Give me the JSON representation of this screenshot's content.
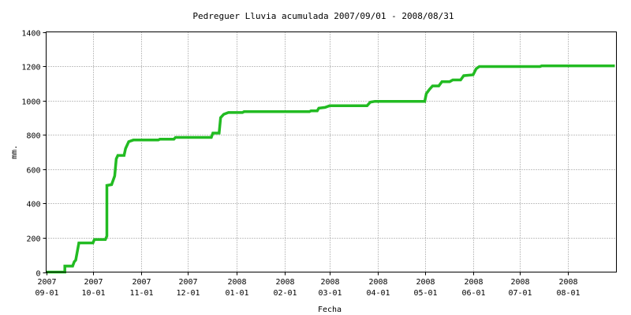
{
  "chart_data": {
    "type": "line",
    "title": "Pedreguer Lluvia acumulada 2007/09/01 - 2008/08/31",
    "xlabel": "Fecha",
    "ylabel": "mm.",
    "ylim": [
      0,
      1400
    ],
    "yticks": [
      0,
      200,
      400,
      600,
      800,
      1000,
      1200,
      1400
    ],
    "xlim": [
      "2007-09-01",
      "2008-08-31"
    ],
    "xticks": [
      {
        "date": "2007-09-01",
        "year": "2007",
        "md": "09-01"
      },
      {
        "date": "2007-10-01",
        "year": "2007",
        "md": "10-01"
      },
      {
        "date": "2007-11-01",
        "year": "2007",
        "md": "11-01"
      },
      {
        "date": "2007-12-01",
        "year": "2007",
        "md": "12-01"
      },
      {
        "date": "2008-01-01",
        "year": "2008",
        "md": "01-01"
      },
      {
        "date": "2008-02-01",
        "year": "2008",
        "md": "02-01"
      },
      {
        "date": "2008-03-01",
        "year": "2008",
        "md": "03-01"
      },
      {
        "date": "2008-04-01",
        "year": "2008",
        "md": "04-01"
      },
      {
        "date": "2008-05-01",
        "year": "2008",
        "md": "05-01"
      },
      {
        "date": "2008-06-01",
        "year": "2008",
        "md": "06-01"
      },
      {
        "date": "2008-07-01",
        "year": "2008",
        "md": "07-01"
      },
      {
        "date": "2008-08-01",
        "year": "2008",
        "md": "08-01"
      }
    ],
    "grid": true,
    "series": [
      {
        "color": "#22bb22",
        "points": [
          [
            "2007-09-01",
            0
          ],
          [
            "2007-09-13",
            0
          ],
          [
            "2007-09-13",
            35
          ],
          [
            "2007-09-18",
            35
          ],
          [
            "2007-09-19",
            60
          ],
          [
            "2007-09-20",
            70
          ],
          [
            "2007-09-21",
            120
          ],
          [
            "2007-09-22",
            170
          ],
          [
            "2007-10-01",
            170
          ],
          [
            "2007-10-02",
            190
          ],
          [
            "2007-10-09",
            190
          ],
          [
            "2007-10-10",
            210
          ],
          [
            "2007-10-10",
            505
          ],
          [
            "2007-10-13",
            510
          ],
          [
            "2007-10-15",
            560
          ],
          [
            "2007-10-16",
            660
          ],
          [
            "2007-10-17",
            680
          ],
          [
            "2007-10-21",
            680
          ],
          [
            "2007-10-22",
            720
          ],
          [
            "2007-10-24",
            760
          ],
          [
            "2007-10-27",
            770
          ],
          [
            "2007-11-12",
            770
          ],
          [
            "2007-11-13",
            775
          ],
          [
            "2007-11-22",
            775
          ],
          [
            "2007-11-23",
            785
          ],
          [
            "2007-12-16",
            785
          ],
          [
            "2007-12-17",
            810
          ],
          [
            "2007-12-21",
            810
          ],
          [
            "2007-12-22",
            900
          ],
          [
            "2007-12-24",
            920
          ],
          [
            "2007-12-27",
            930
          ],
          [
            "2008-01-05",
            930
          ],
          [
            "2008-01-06",
            935
          ],
          [
            "2008-02-17",
            935
          ],
          [
            "2008-02-18",
            940
          ],
          [
            "2008-02-22",
            940
          ],
          [
            "2008-02-23",
            955
          ],
          [
            "2008-02-27",
            960
          ],
          [
            "2008-03-01",
            970
          ],
          [
            "2008-03-25",
            970
          ],
          [
            "2008-03-27",
            990
          ],
          [
            "2008-03-30",
            995
          ],
          [
            "2008-05-01",
            995
          ],
          [
            "2008-05-02",
            1040
          ],
          [
            "2008-05-04",
            1065
          ],
          [
            "2008-05-06",
            1085
          ],
          [
            "2008-05-10",
            1085
          ],
          [
            "2008-05-12",
            1110
          ],
          [
            "2008-05-17",
            1110
          ],
          [
            "2008-05-19",
            1120
          ],
          [
            "2008-05-24",
            1120
          ],
          [
            "2008-05-26",
            1145
          ],
          [
            "2008-06-01",
            1150
          ],
          [
            "2008-06-03",
            1185
          ],
          [
            "2008-06-05",
            1198
          ],
          [
            "2008-07-14",
            1198
          ],
          [
            "2008-07-15",
            1202
          ],
          [
            "2008-08-31",
            1202
          ]
        ]
      }
    ]
  },
  "colors": {
    "grid": "#888888",
    "frame": "#000000",
    "background": "#ffffff"
  }
}
